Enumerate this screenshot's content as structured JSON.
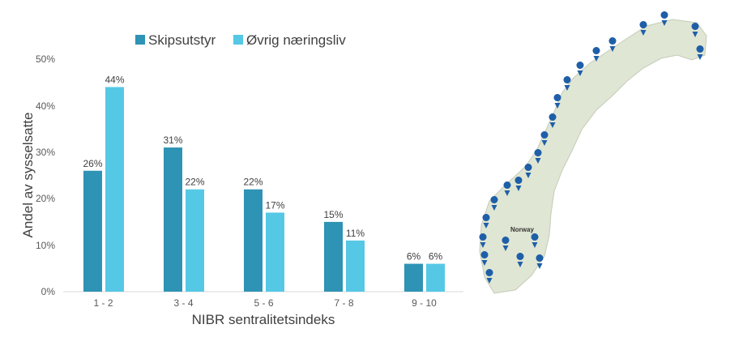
{
  "chart_data": {
    "type": "bar",
    "title": "",
    "xlabel": "NIBR sentralitetsindeks",
    "ylabel": "Andel av sysselsatte",
    "categories": [
      "1 - 2",
      "3 - 4",
      "5 - 6",
      "7 - 8",
      "9  - 10"
    ],
    "yticks": [
      "0%",
      "10%",
      "20%",
      "30%",
      "40%",
      "50%"
    ],
    "ylim": [
      0,
      50
    ],
    "grid": false,
    "legend": "top",
    "series": [
      {
        "name": "Skipsutstyr",
        "color": "#2E93B4",
        "values": [
          26,
          31,
          22,
          15,
          6
        ],
        "labels": [
          "26%",
          "31%",
          "22%",
          "15%",
          "6%"
        ]
      },
      {
        "name": "Øvrig næringsliv",
        "color": "#55C8E6",
        "values": [
          44,
          22,
          17,
          11,
          6
        ],
        "labels": [
          "44%",
          "22%",
          "17%",
          "11%",
          "6%"
        ]
      }
    ]
  },
  "map": {
    "country_label": "Norway",
    "land_color": "#dfe6d3",
    "marker_color": "#1f5fa8",
    "marker_icon": "map-pin-icon"
  }
}
